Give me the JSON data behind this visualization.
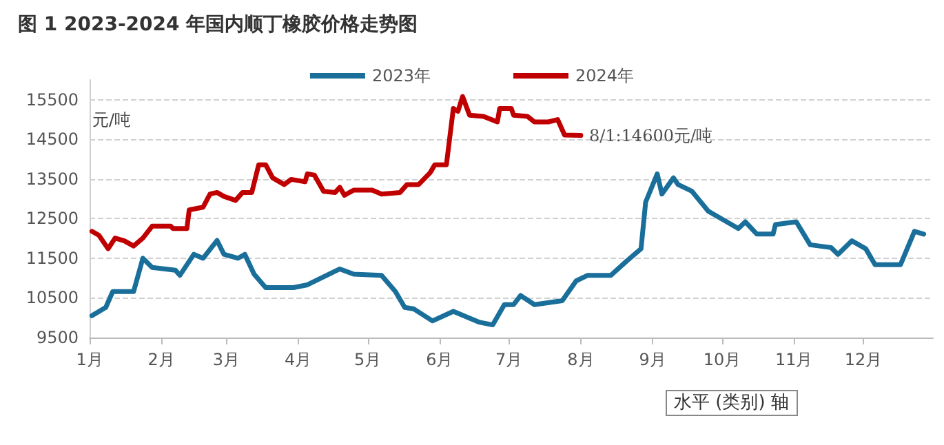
{
  "chart_data": {
    "type": "line",
    "title": "图 1 2023-2024 年国内顺丁橡胶价格走势图",
    "ylabel": "元/吨",
    "xlabel": "水平 (类别) 轴",
    "xlim": [
      "--01-01",
      "--12-31"
    ],
    "xticks": [
      {
        "value": "--01-01",
        "label": "1月"
      },
      {
        "value": "--02-01",
        "label": "2月"
      },
      {
        "value": "--03-01",
        "label": "3月"
      },
      {
        "value": "--04-01",
        "label": "4月"
      },
      {
        "value": "--05-01",
        "label": "5月"
      },
      {
        "value": "--06-01",
        "label": "6月"
      },
      {
        "value": "--07-01",
        "label": "7月"
      },
      {
        "value": "--08-01",
        "label": "8月"
      },
      {
        "value": "--09-01",
        "label": "9月"
      },
      {
        "value": "--10-01",
        "label": "10月"
      },
      {
        "value": "--11-01",
        "label": "11月"
      },
      {
        "value": "--12-01",
        "label": "12月"
      }
    ],
    "ylim": [
      9500,
      16000
    ],
    "yticks": [
      9500,
      10500,
      11500,
      12500,
      13500,
      14500,
      15500
    ],
    "grid": "y",
    "legend": "top",
    "marker": "none",
    "line_style": "solid",
    "series": [
      {
        "name": "2023年",
        "color": "#1a6f9a",
        "x": [
          "--01-02",
          "--01-08",
          "--01-11",
          "--01-20",
          "--01-24",
          "--01-28",
          "--02-07",
          "--02-09",
          "--02-15",
          "--02-19",
          "--02-25",
          "--02-28",
          "--03-06",
          "--03-09",
          "--03-13",
          "--03-18",
          "--03-30",
          "--04-05",
          "--04-19",
          "--04-25",
          "--05-07",
          "--05-13",
          "--05-17",
          "--05-21",
          "--05-29",
          "--06-07",
          "--06-18",
          "--06-24",
          "--06-29",
          "--07-03",
          "--07-06",
          "--07-12",
          "--07-24",
          "--07-30",
          "--08-04",
          "--08-14",
          "--08-21",
          "--08-27",
          "--08-29",
          "--09-03",
          "--09-05",
          "--09-10",
          "--09-12",
          "--09-18",
          "--09-25",
          "--10-08",
          "--10-11",
          "--10-16",
          "--10-23",
          "--10-24",
          "--11-02",
          "--11-08",
          "--11-17",
          "--11-20",
          "--11-26",
          "--12-02",
          "--12-06",
          "--12-17",
          "--12-23",
          "--12-27"
        ],
        "values": [
          10050,
          10260,
          10660,
          10660,
          11500,
          11270,
          11200,
          11070,
          11600,
          11500,
          11950,
          11600,
          11500,
          11600,
          11100,
          10760,
          10760,
          10830,
          11230,
          11100,
          11070,
          10660,
          10260,
          10220,
          9920,
          10160,
          9890,
          9820,
          10330,
          10330,
          10560,
          10330,
          10430,
          10930,
          11070,
          11070,
          11440,
          11740,
          12920,
          13630,
          13120,
          13530,
          13360,
          13190,
          12690,
          12250,
          12420,
          12110,
          12110,
          12350,
          12420,
          11840,
          11770,
          11600,
          11940,
          11740,
          11340,
          11340,
          12180,
          12110
        ]
      },
      {
        "name": "2024年",
        "color": "#c00000",
        "x": [
          "--01-02",
          "--01-05",
          "--01-09",
          "--01-12",
          "--01-16",
          "--01-20",
          "--01-24",
          "--01-28",
          "--02-05",
          "--02-06",
          "--02-12",
          "--02-13",
          "--02-19",
          "--02-22",
          "--02-25",
          "--02-28",
          "--03-05",
          "--03-08",
          "--03-12",
          "--03-15",
          "--03-18",
          "--03-21",
          "--03-26",
          "--03-29",
          "--04-04",
          "--04-05",
          "--04-08",
          "--04-12",
          "--04-17",
          "--04-19",
          "--04-21",
          "--04-25",
          "--05-03",
          "--05-07",
          "--05-15",
          "--05-18",
          "--05-23",
          "--05-28",
          "--05-30",
          "--06-04",
          "--06-07",
          "--06-09",
          "--06-11",
          "--06-14",
          "--06-20",
          "--06-26",
          "--06-27",
          "--07-02",
          "--07-03",
          "--07-09",
          "--07-12",
          "--07-18",
          "--07-22",
          "--07-25",
          "--08-01"
        ],
        "values": [
          12180,
          12080,
          11740,
          12010,
          11940,
          11810,
          12010,
          12310,
          12310,
          12250,
          12250,
          12720,
          12790,
          13120,
          13160,
          13060,
          12960,
          13160,
          13160,
          13860,
          13860,
          13530,
          13360,
          13490,
          13430,
          13630,
          13600,
          13190,
          13160,
          13290,
          13090,
          13220,
          13220,
          13120,
          13160,
          13360,
          13360,
          13660,
          13860,
          13860,
          15280,
          15210,
          15580,
          15110,
          15080,
          14940,
          15280,
          15280,
          15110,
          15080,
          14940,
          14940,
          15000,
          14610,
          14600
        ]
      }
    ],
    "annotations": [
      {
        "text": "8/1:14600元/吨",
        "x": "--08-01",
        "y": 14600
      }
    ]
  }
}
